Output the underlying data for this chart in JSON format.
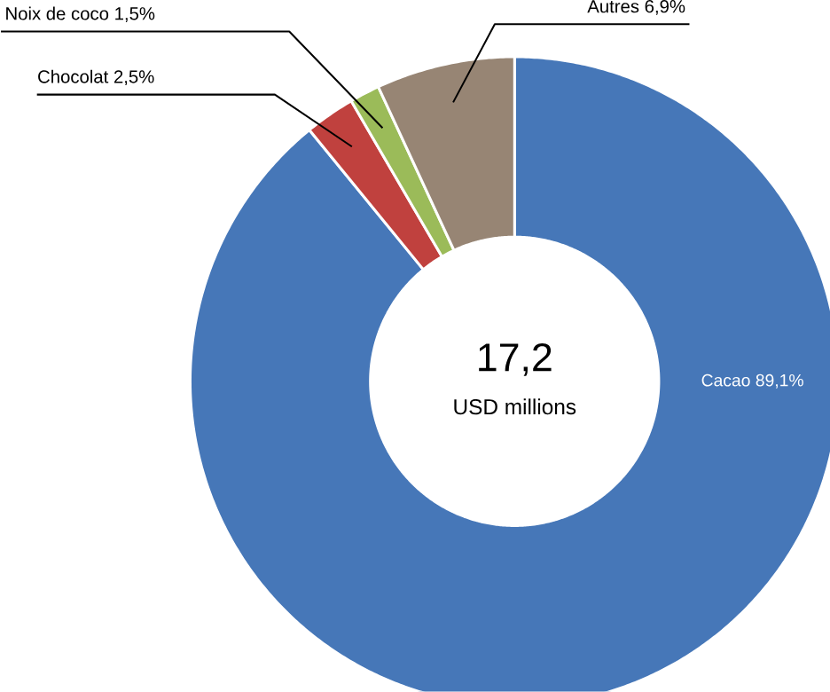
{
  "chart_data": {
    "type": "donut",
    "categories": [
      "Cacao",
      "Chocolat",
      "Noix de coco",
      "Autres"
    ],
    "values": [
      89.1,
      2.5,
      1.5,
      6.9
    ],
    "value_labels": [
      "89,1%",
      "2,5%",
      "1,5%",
      "6,9%"
    ],
    "colors": [
      "#4677b8",
      "#c0413e",
      "#9bbb59",
      "#978574"
    ],
    "annotations": [
      "17,2",
      "USD millions"
    ]
  }
}
